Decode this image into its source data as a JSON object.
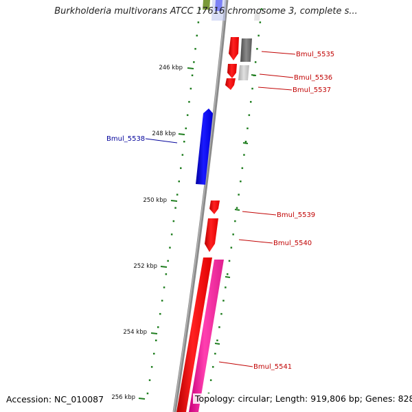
{
  "title": "Burkholderia multivorans ATCC 17616 chromosome 3, complete s...",
  "accession": "Accession: NC_010087",
  "stats": "Topology: circular; Length: 919,806 bp; Genes: 828",
  "colors": {
    "backbone": "#8a8a8a",
    "ticks": "#1e7d1e",
    "forward_gene": "#ff0000",
    "reverse_gene": "#0000ff",
    "gene_pink": "#ff2aa0",
    "gene_dark_grey": "#6f6f6f",
    "gene_light_grey": "#c6c6c6",
    "gene_olive": "#7a9a3a",
    "gene_pale_blue": "#c0c8f0",
    "forward_label": "#c00000",
    "reverse_label": "#00009a"
  },
  "scale_ticks": [
    {
      "label": "246 kbp"
    },
    {
      "label": "248 kbp"
    },
    {
      "label": "250 kbp"
    },
    {
      "label": "252 kbp"
    },
    {
      "label": "254 kbp"
    },
    {
      "label": "256 kbp"
    }
  ],
  "gene_labels": [
    {
      "name": "Bmul_5535",
      "strand": "forward"
    },
    {
      "name": "Bmul_5536",
      "strand": "forward"
    },
    {
      "name": "Bmul_5537",
      "strand": "forward"
    },
    {
      "name": "Bmul_5538",
      "strand": "reverse"
    },
    {
      "name": "Bmul_5539",
      "strand": "forward"
    },
    {
      "name": "Bmul_5540",
      "strand": "forward"
    },
    {
      "name": "Bmul_5541",
      "strand": "forward"
    }
  ]
}
